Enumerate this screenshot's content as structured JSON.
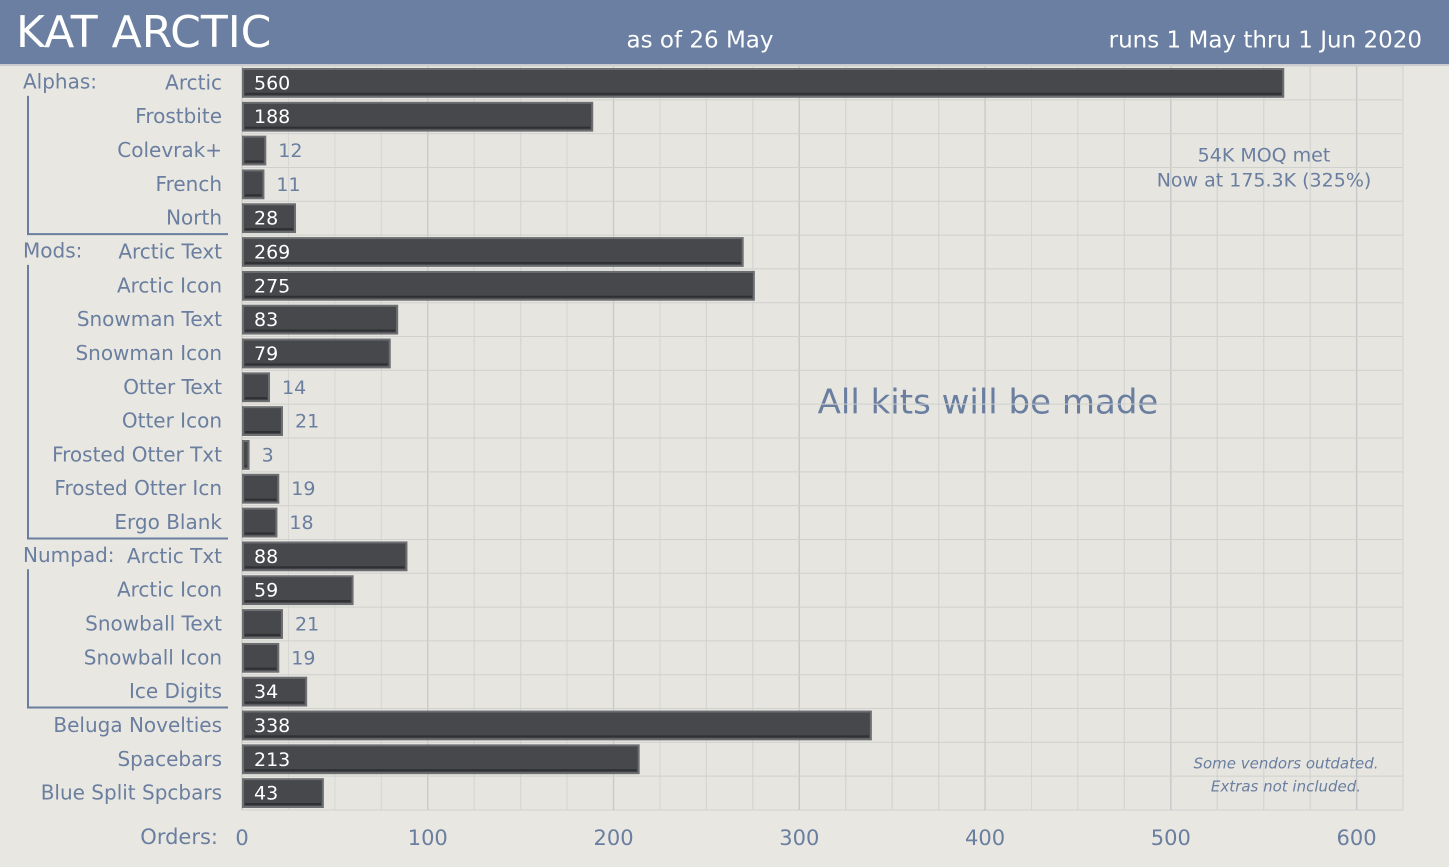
{
  "chart_data": {
    "type": "bar",
    "title": "KAT ARCTIC",
    "subtitle": "as of 26 May",
    "run_note": "runs 1 May thru 1 Jun 2020",
    "x_label": "Orders:",
    "color": "#46484c",
    "grid": true,
    "xlim": [
      0,
      625
    ],
    "xticks": [
      0,
      100,
      200,
      300,
      400,
      500,
      600
    ],
    "groups": [
      {
        "name": "Alphas:",
        "categories": [
          "Arctic",
          "Frostbite",
          "Colevrak+",
          "French",
          "North"
        ],
        "values": [
          560,
          188,
          12,
          11,
          28
        ]
      },
      {
        "name": "Mods:",
        "categories": [
          "Arctic Text",
          "Arctic Icon",
          "Snowman Text",
          "Snowman Icon",
          "Otter Text",
          "Otter Icon",
          "Frosted Otter Txt",
          "Frosted Otter Icn",
          "Ergo Blank"
        ],
        "values": [
          269,
          275,
          83,
          79,
          14,
          21,
          3,
          19,
          18
        ]
      },
      {
        "name": "Numpad:",
        "categories": [
          "Arctic Txt",
          "Arctic Icon",
          "Snowball Text",
          "Snowball Icon",
          "Ice Digits"
        ],
        "values": [
          88,
          59,
          21,
          19,
          34
        ]
      },
      {
        "categories": [
          "Beluga Novelties",
          "Spacebars",
          "Blue Split Spcbars"
        ],
        "values": [
          338,
          213,
          43
        ]
      }
    ],
    "annotations": [
      "54K MOQ met",
      "Now at 175.3K (325%)",
      "All kits will be made",
      "Some vendors outdated.",
      "Extras not included."
    ]
  }
}
